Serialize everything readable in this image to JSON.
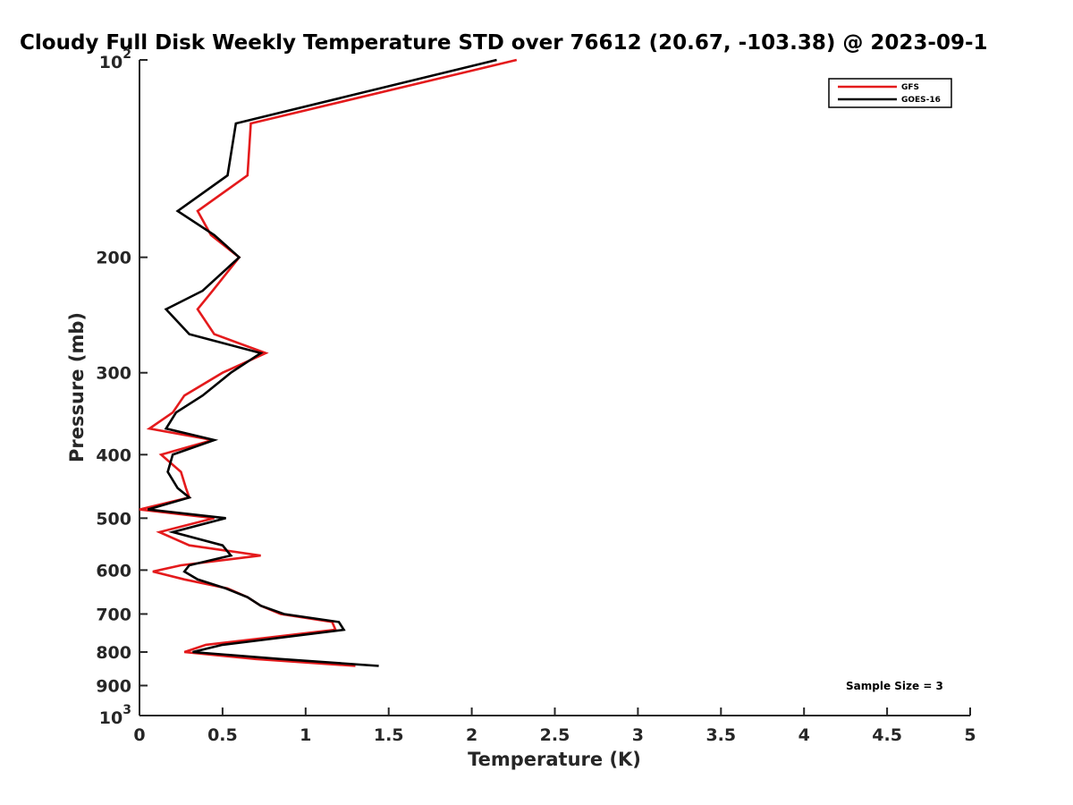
{
  "chart_data": {
    "type": "line",
    "title": "Cloudy Full Disk Weekly Temperature STD over 76612 (20.67, -103.38) @ 2023-09-1",
    "xlabel": "Temperature (K)",
    "ylabel": "Pressure (mb)",
    "xlim": [
      0,
      5
    ],
    "ylim": [
      100,
      1000
    ],
    "y_scale": "log",
    "y_reversed": true,
    "x_ticks": [
      "0",
      "0.5",
      "1",
      "1.5",
      "2",
      "2.5",
      "3",
      "3.5",
      "4",
      "4.5",
      "5"
    ],
    "x_tick_values": [
      0,
      0.5,
      1,
      1.5,
      2,
      2.5,
      3,
      3.5,
      4,
      4.5,
      5
    ],
    "y_ticks": [
      {
        "value": 100,
        "base": "10",
        "exp": "2"
      },
      {
        "value": 200,
        "label": "200"
      },
      {
        "value": 300,
        "label": "300"
      },
      {
        "value": 400,
        "label": "400"
      },
      {
        "value": 500,
        "label": "500"
      },
      {
        "value": 600,
        "label": "600"
      },
      {
        "value": 700,
        "label": "700"
      },
      {
        "value": 800,
        "label": "800"
      },
      {
        "value": 900,
        "label": "900"
      },
      {
        "value": 1000,
        "base": "10",
        "exp": "3"
      }
    ],
    "grid": false,
    "legend_position": "top-right",
    "series": [
      {
        "name": "GFS",
        "color": "#e41a1c",
        "points": [
          [
            2.27,
            100
          ],
          [
            0.67,
            125
          ],
          [
            0.65,
            150
          ],
          [
            0.35,
            170
          ],
          [
            0.43,
            185
          ],
          [
            0.6,
            200
          ],
          [
            0.44,
            225
          ],
          [
            0.35,
            240
          ],
          [
            0.45,
            262
          ],
          [
            0.76,
            280
          ],
          [
            0.5,
            300
          ],
          [
            0.27,
            325
          ],
          [
            0.2,
            345
          ],
          [
            0.06,
            365
          ],
          [
            0.44,
            380
          ],
          [
            0.13,
            400
          ],
          [
            0.25,
            425
          ],
          [
            0.28,
            450
          ],
          [
            0.3,
            465
          ],
          [
            0.0,
            485
          ],
          [
            0.45,
            500
          ],
          [
            0.12,
            525
          ],
          [
            0.3,
            550
          ],
          [
            0.73,
            570
          ],
          [
            0.25,
            590
          ],
          [
            0.08,
            603
          ],
          [
            0.27,
            620
          ],
          [
            0.53,
            640
          ],
          [
            0.65,
            660
          ],
          [
            0.73,
            680
          ],
          [
            0.85,
            700
          ],
          [
            1.16,
            720
          ],
          [
            1.18,
            740
          ],
          [
            0.4,
            780
          ],
          [
            0.27,
            800
          ],
          [
            0.7,
            820
          ],
          [
            1.3,
            840
          ]
        ]
      },
      {
        "name": "GOES-16",
        "color": "#000000",
        "points": [
          [
            2.15,
            100
          ],
          [
            0.58,
            125
          ],
          [
            0.53,
            150
          ],
          [
            0.23,
            170
          ],
          [
            0.45,
            185
          ],
          [
            0.6,
            200
          ],
          [
            0.38,
            225
          ],
          [
            0.16,
            240
          ],
          [
            0.3,
            262
          ],
          [
            0.73,
            280
          ],
          [
            0.55,
            300
          ],
          [
            0.38,
            325
          ],
          [
            0.22,
            345
          ],
          [
            0.16,
            365
          ],
          [
            0.45,
            380
          ],
          [
            0.2,
            400
          ],
          [
            0.17,
            425
          ],
          [
            0.23,
            450
          ],
          [
            0.3,
            465
          ],
          [
            0.05,
            485
          ],
          [
            0.52,
            500
          ],
          [
            0.2,
            525
          ],
          [
            0.5,
            550
          ],
          [
            0.55,
            570
          ],
          [
            0.3,
            590
          ],
          [
            0.27,
            603
          ],
          [
            0.35,
            620
          ],
          [
            0.52,
            640
          ],
          [
            0.65,
            660
          ],
          [
            0.73,
            680
          ],
          [
            0.87,
            700
          ],
          [
            1.2,
            720
          ],
          [
            1.23,
            740
          ],
          [
            0.5,
            780
          ],
          [
            0.32,
            800
          ],
          [
            0.85,
            820
          ],
          [
            1.44,
            840
          ]
        ]
      }
    ],
    "annotation": "Sample Size = 3"
  }
}
